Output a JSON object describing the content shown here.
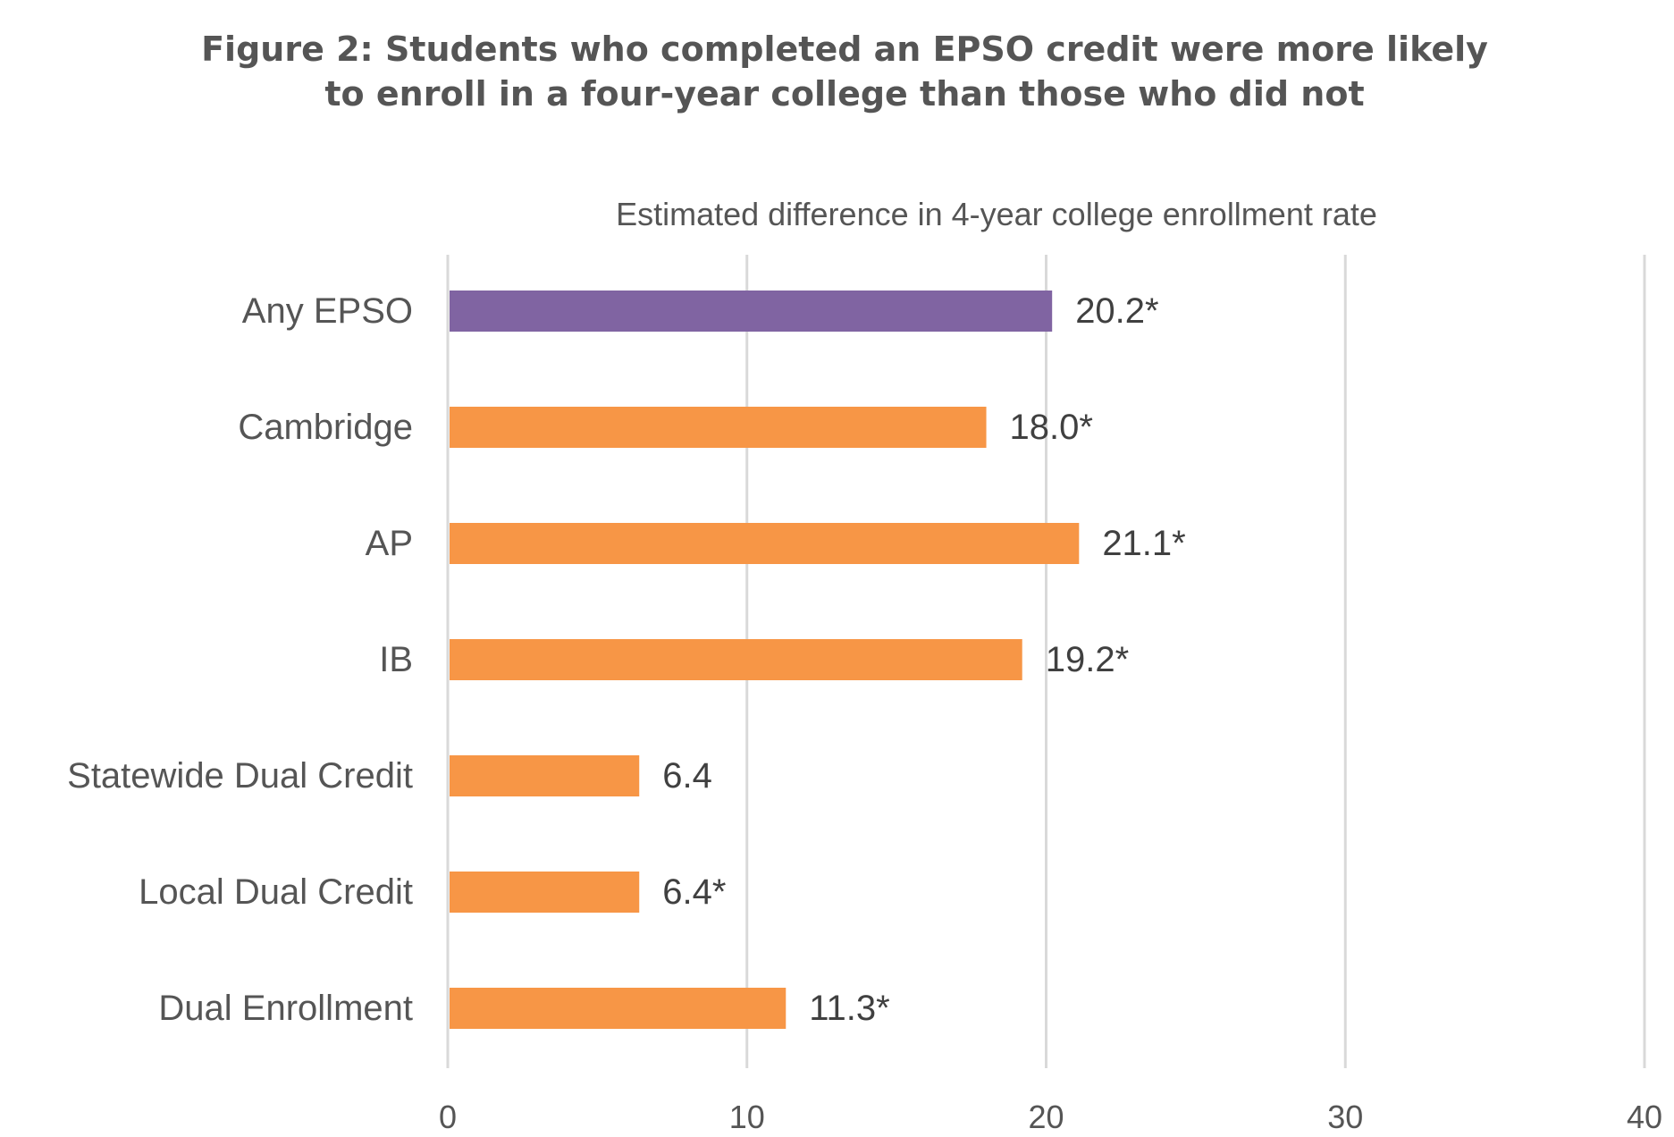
{
  "title_line1": "Figure 2: Students who completed an EPSO credit were more likely",
  "title_line2": "to enroll in a four-year college than those who did not",
  "chart_data": {
    "type": "bar",
    "orientation": "horizontal",
    "xlabel": "Estimated difference in 4-year college enrollment rate",
    "xlim": [
      0,
      40
    ],
    "xticks": [
      0,
      10,
      20,
      30,
      40
    ],
    "grid": true,
    "categories": [
      "Any EPSO",
      "Cambridge",
      "AP",
      "IB",
      "Statewide Dual Credit",
      "Local Dual Credit",
      "Dual Enrollment"
    ],
    "values": [
      20.2,
      18.0,
      21.1,
      19.2,
      6.4,
      6.4,
      11.3
    ],
    "labels": [
      "20.2*",
      "18.0*",
      "21.1*",
      "19.2*",
      "6.4",
      "6.4*",
      "11.3*"
    ],
    "colors": [
      "#8064a2",
      "#f79646",
      "#f79646",
      "#f79646",
      "#f79646",
      "#f79646",
      "#f79646"
    ],
    "gridline_color": "#d9d9d9"
  }
}
